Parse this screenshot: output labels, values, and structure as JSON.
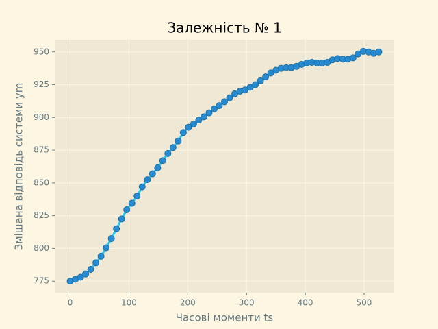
{
  "chart_data": {
    "type": "line",
    "title": "Залежність № 1",
    "x_label": "Часові моменти ts",
    "y_label": "Змішана відповідь системи ym",
    "x": [
      0,
      8.75,
      17.5,
      26.25,
      35,
      43.75,
      52.5,
      61.25,
      70,
      78.75,
      87.5,
      96.25,
      105,
      113.75,
      122.5,
      131.25,
      140,
      148.75,
      157.5,
      166.25,
      175,
      183.75,
      192.5,
      201.25,
      210,
      218.75,
      227.5,
      236.25,
      245,
      253.75,
      262.5,
      271.25,
      280,
      288.75,
      297.5,
      306.25,
      315,
      323.75,
      332.5,
      341.25,
      350,
      358.75,
      367.5,
      376.25,
      385,
      393.75,
      402.5,
      411.25,
      420,
      428.75,
      437.5,
      446.25,
      455,
      463.75,
      472.5,
      481.25,
      490,
      498.75,
      507.5,
      516.25,
      525
    ],
    "series": [
      {
        "color": "#1ec8f5",
        "marker_color": "#268bd2",
        "values": [
          775,
          776.5,
          778,
          780.5,
          784,
          789,
          794,
          800.5,
          807.5,
          815,
          822.5,
          829.5,
          834.5,
          840,
          847,
          852.5,
          857,
          861.5,
          867,
          872.5,
          877,
          882,
          888.5,
          892.5,
          895,
          898,
          900.5,
          903.5,
          906.5,
          909,
          912,
          915,
          918,
          920,
          921,
          923,
          925,
          928,
          931,
          934,
          936,
          937.5,
          938,
          938,
          939,
          940.5,
          941.5,
          942,
          941.5,
          941.5,
          942,
          944,
          945,
          944.5,
          944.5,
          945.5,
          948.5,
          950.5,
          950,
          949,
          950
        ]
      }
    ],
    "xlim": [
      -26.25,
      551.25
    ],
    "xticks": [
      0,
      100,
      200,
      300,
      400,
      500
    ],
    "ylim": [
      766.2,
      959.3
    ],
    "yticks": [
      775,
      800,
      825,
      850,
      875,
      900,
      925,
      950
    ],
    "grid": true
  }
}
